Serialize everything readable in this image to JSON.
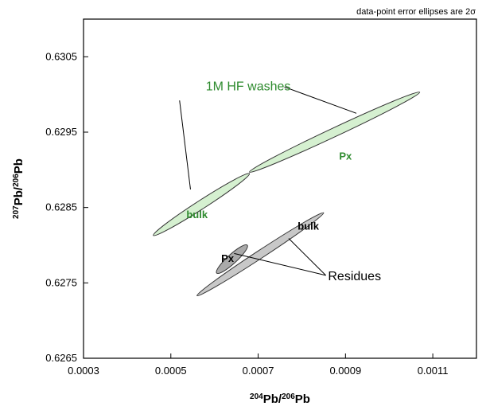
{
  "chart_data": {
    "type": "scatter",
    "title": "",
    "note": "data-point error ellipses are 2σ",
    "xlabel": {
      "sup1": "204",
      "base1": "Pb/",
      "sup2": "206",
      "base2": "Pb"
    },
    "ylabel": {
      "sup1": "207",
      "base1": "Pb/",
      "sup2": "206",
      "base2": "Pb"
    },
    "xlim": [
      0.0003,
      0.0012
    ],
    "ylim": [
      0.6265,
      0.631
    ],
    "xticks": [
      "0.0003",
      "0.0005",
      "0.0007",
      "0.0009",
      "0.0011"
    ],
    "xtick_values": [
      0.0003,
      0.0005,
      0.0007,
      0.0009,
      0.0011
    ],
    "yticks": [
      "0.6265",
      "0.6275",
      "0.6285",
      "0.6295",
      "0.6305"
    ],
    "ytick_values": [
      0.6265,
      0.6275,
      0.6285,
      0.6295,
      0.6305
    ],
    "grid": false,
    "ellipses": [
      {
        "label": "bulk",
        "group": "1M HF washes",
        "cx": 0.00057,
        "cy": 0.62855,
        "x_end1": 0.00046,
        "y_end1": 0.62813,
        "x_end2": 0.00068,
        "y_end2": 0.62895,
        "half_width": 1e-05,
        "fill": "#d5f0d0",
        "label_color": "#2e8b2e",
        "label_x": 0.00056,
        "label_y": 0.6284
      },
      {
        "label": "Px",
        "group": "1M HF washes",
        "cx": 0.000875,
        "cy": 0.6295,
        "x_end1": 0.00068,
        "y_end1": 0.62897,
        "x_end2": 0.00107,
        "y_end2": 0.63003,
        "half_width": 1e-05,
        "fill": "#d5f0d0",
        "label_color": "#2e8b2e",
        "label_x": 0.0009,
        "label_y": 0.62918
      },
      {
        "label": "bulk",
        "group": "Residues",
        "cx": 0.000705,
        "cy": 0.62788,
        "x_end1": 0.00056,
        "y_end1": 0.62733,
        "x_end2": 0.00085,
        "y_end2": 0.62843,
        "half_width": 9e-06,
        "fill": "#c8c8c8",
        "label_color": "#000000",
        "label_x": 0.000815,
        "label_y": 0.62825
      },
      {
        "label": "Px",
        "group": "Residues",
        "cx": 0.00064,
        "cy": 0.62782,
        "x_end1": 0.000605,
        "y_end1": 0.62763,
        "x_end2": 0.000675,
        "y_end2": 0.628,
        "half_width": 1.05e-05,
        "fill": "#aaaaaa",
        "label_color": "#000000",
        "label_x": 0.00063,
        "label_y": 0.62782
      }
    ],
    "annotations": [
      {
        "text": "1M HF washes",
        "color": "#2e8b2e",
        "x": 0.00058,
        "y": 0.63012,
        "lines": [
          {
            "x1": 0.00052,
            "y1": 0.62992,
            "x2": 0.000545,
            "y2": 0.62874
          },
          {
            "x1": 0.00076,
            "y1": 0.6301,
            "x2": 0.000925,
            "y2": 0.62975
          }
        ]
      },
      {
        "text": "Residues",
        "color": "#000000",
        "x": 0.00086,
        "y": 0.6276,
        "lines": [
          {
            "x1": 0.000855,
            "y1": 0.6276,
            "x2": 0.00077,
            "y2": 0.62809
          },
          {
            "x1": 0.000855,
            "y1": 0.6276,
            "x2": 0.000645,
            "y2": 0.62789
          }
        ]
      }
    ]
  }
}
